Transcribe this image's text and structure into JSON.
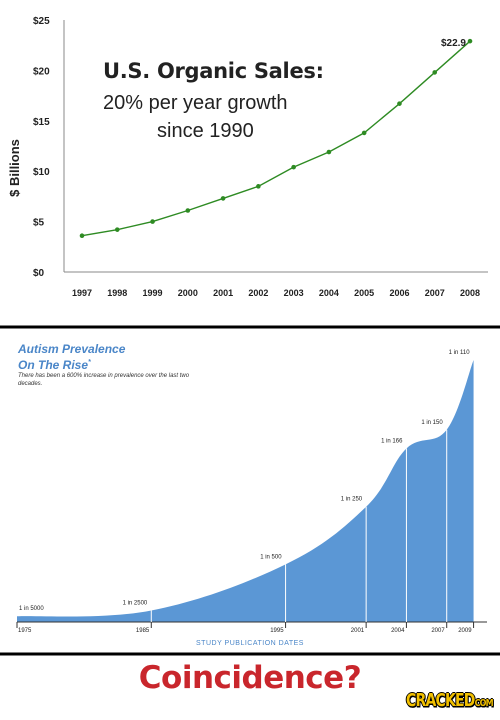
{
  "chart_data": [
    {
      "type": "line",
      "title": "U.S. Organic Sales:",
      "subtitle_line1": "20% per year growth",
      "subtitle_line2": "since 1990",
      "ylabel": "$ Billions",
      "xlabel": "",
      "ylim": [
        0,
        25
      ],
      "yticks": [
        "$0",
        "$5",
        "$10",
        "$15",
        "$20",
        "$25"
      ],
      "ytick_values": [
        0,
        5,
        10,
        15,
        20,
        25
      ],
      "x": [
        "1997",
        "1998",
        "1999",
        "2000",
        "2001",
        "2002",
        "2003",
        "2004",
        "2005",
        "2006",
        "2007",
        "2008"
      ],
      "values": [
        3.6,
        4.2,
        5.0,
        6.1,
        7.3,
        8.5,
        10.4,
        11.9,
        13.8,
        16.7,
        19.8,
        22.9
      ],
      "data_labels": [
        {
          "index": 11,
          "text": "$22.9"
        }
      ],
      "grid": false,
      "line_color": "#2e8b23",
      "marker_color": "#2e8b23"
    },
    {
      "type": "area",
      "title": "Autism Prevalence",
      "title_line2": "On The Rise",
      "title_mark": "*",
      "subtitle": "There has been a 600% increase in prevalence over the last two decades.",
      "xlabel": "STUDY PUBLICATION DATES",
      "xlim": [
        1975,
        2010
      ],
      "xticks": [
        "1975",
        "1985",
        "1995",
        "2001",
        "2004",
        "2007",
        "2009"
      ],
      "xtick_values": [
        1975,
        1985,
        1995,
        2001,
        2004,
        2007,
        2009
      ],
      "points": [
        {
          "x": 1975,
          "prevalence_per_10000": 2.0,
          "label": "1 in 5000"
        },
        {
          "x": 1985,
          "prevalence_per_10000": 4.0,
          "label": "1 in 2500"
        },
        {
          "x": 1995,
          "prevalence_per_10000": 20.0,
          "label": "1 in 500"
        },
        {
          "x": 2001,
          "prevalence_per_10000": 40.0,
          "label": "1 in 250"
        },
        {
          "x": 2004,
          "prevalence_per_10000": 60.2,
          "label": "1 in 166"
        },
        {
          "x": 2007,
          "prevalence_per_10000": 66.7,
          "label": "1 in 150"
        },
        {
          "x": 2009,
          "prevalence_per_10000": 90.9,
          "label": "1 in 110"
        }
      ],
      "fill_color": "#5b97d5",
      "marker_line_color": "#ffffff"
    }
  ],
  "caption": "Coincidence?",
  "logo": {
    "main": "CRACKED",
    "suffix": "COM"
  },
  "colors": {
    "caption": "#c9262c",
    "logo_fill": "#f2c000",
    "divider": "#000000"
  }
}
